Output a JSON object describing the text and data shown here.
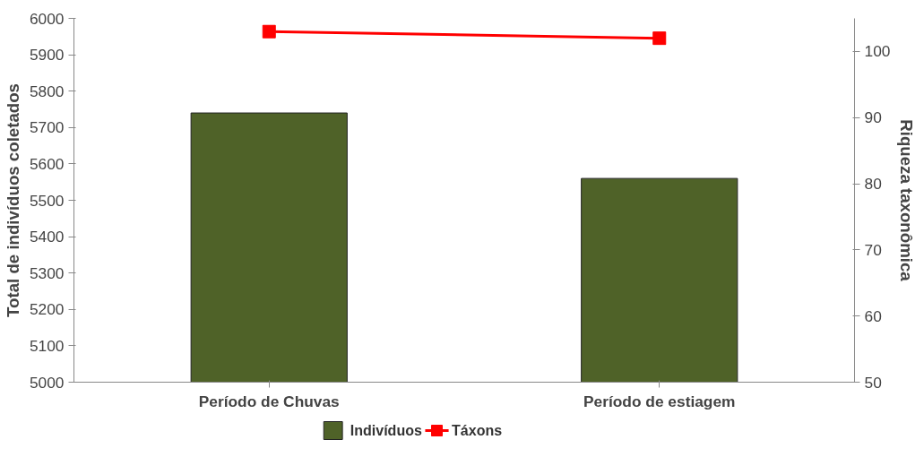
{
  "chart_data": {
    "type": "bar",
    "categories": [
      "Período de Chuvas",
      "Período de estiagem"
    ],
    "ylabel": "Total de indivíduos coletados",
    "y2label": "Riqueza taxonômica",
    "ylim": [
      5000,
      6000
    ],
    "yticks": [
      5000,
      5100,
      5200,
      5300,
      5400,
      5500,
      5600,
      5700,
      5800,
      5900,
      6000
    ],
    "y2lim": [
      50,
      105
    ],
    "y2ticks": [
      50,
      60,
      70,
      80,
      90,
      100
    ],
    "series": [
      {
        "name": "Indivíduos",
        "color": "#4f6228",
        "values": [
          5740,
          5560
        ]
      },
      {
        "name": "Táxons",
        "type": "line",
        "axis": "y2",
        "color": "#ff0000",
        "values": [
          103,
          102
        ]
      }
    ],
    "marker": "square",
    "grid": false,
    "legend": "bottom"
  }
}
